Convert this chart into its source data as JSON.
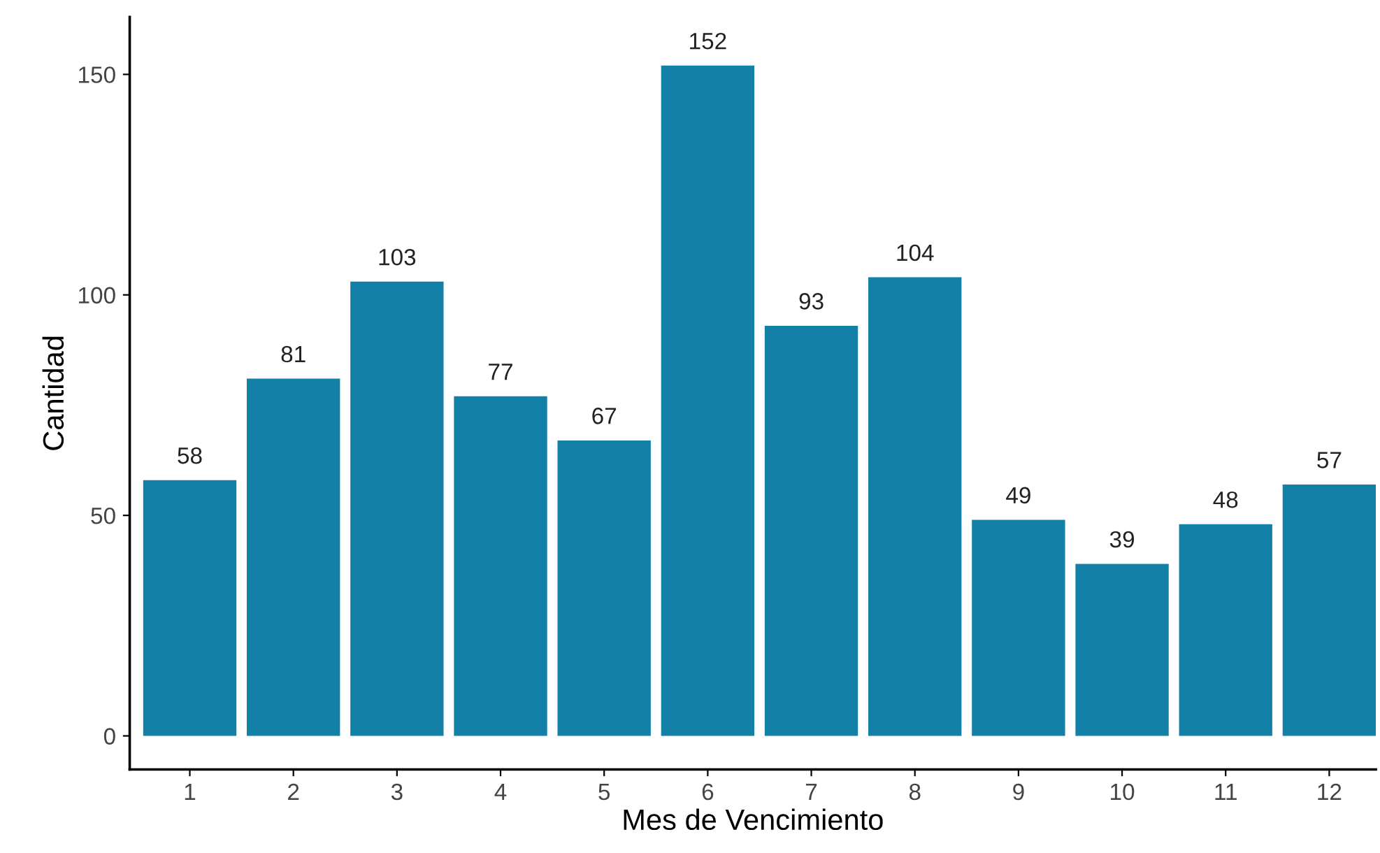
{
  "chart_data": {
    "type": "bar",
    "xlabel": "Mes de Vencimiento",
    "ylabel": "Cantidad",
    "categories": [
      "1",
      "2",
      "3",
      "4",
      "5",
      "6",
      "7",
      "8",
      "9",
      "10",
      "11",
      "12"
    ],
    "values": [
      58,
      81,
      103,
      77,
      67,
      152,
      93,
      104,
      49,
      39,
      48,
      57
    ],
    "color": "#1380a8",
    "ylim": [
      -7.6,
      163
    ],
    "yticks": [
      0,
      50,
      100,
      150
    ],
    "grid": false,
    "data_labels": true
  }
}
